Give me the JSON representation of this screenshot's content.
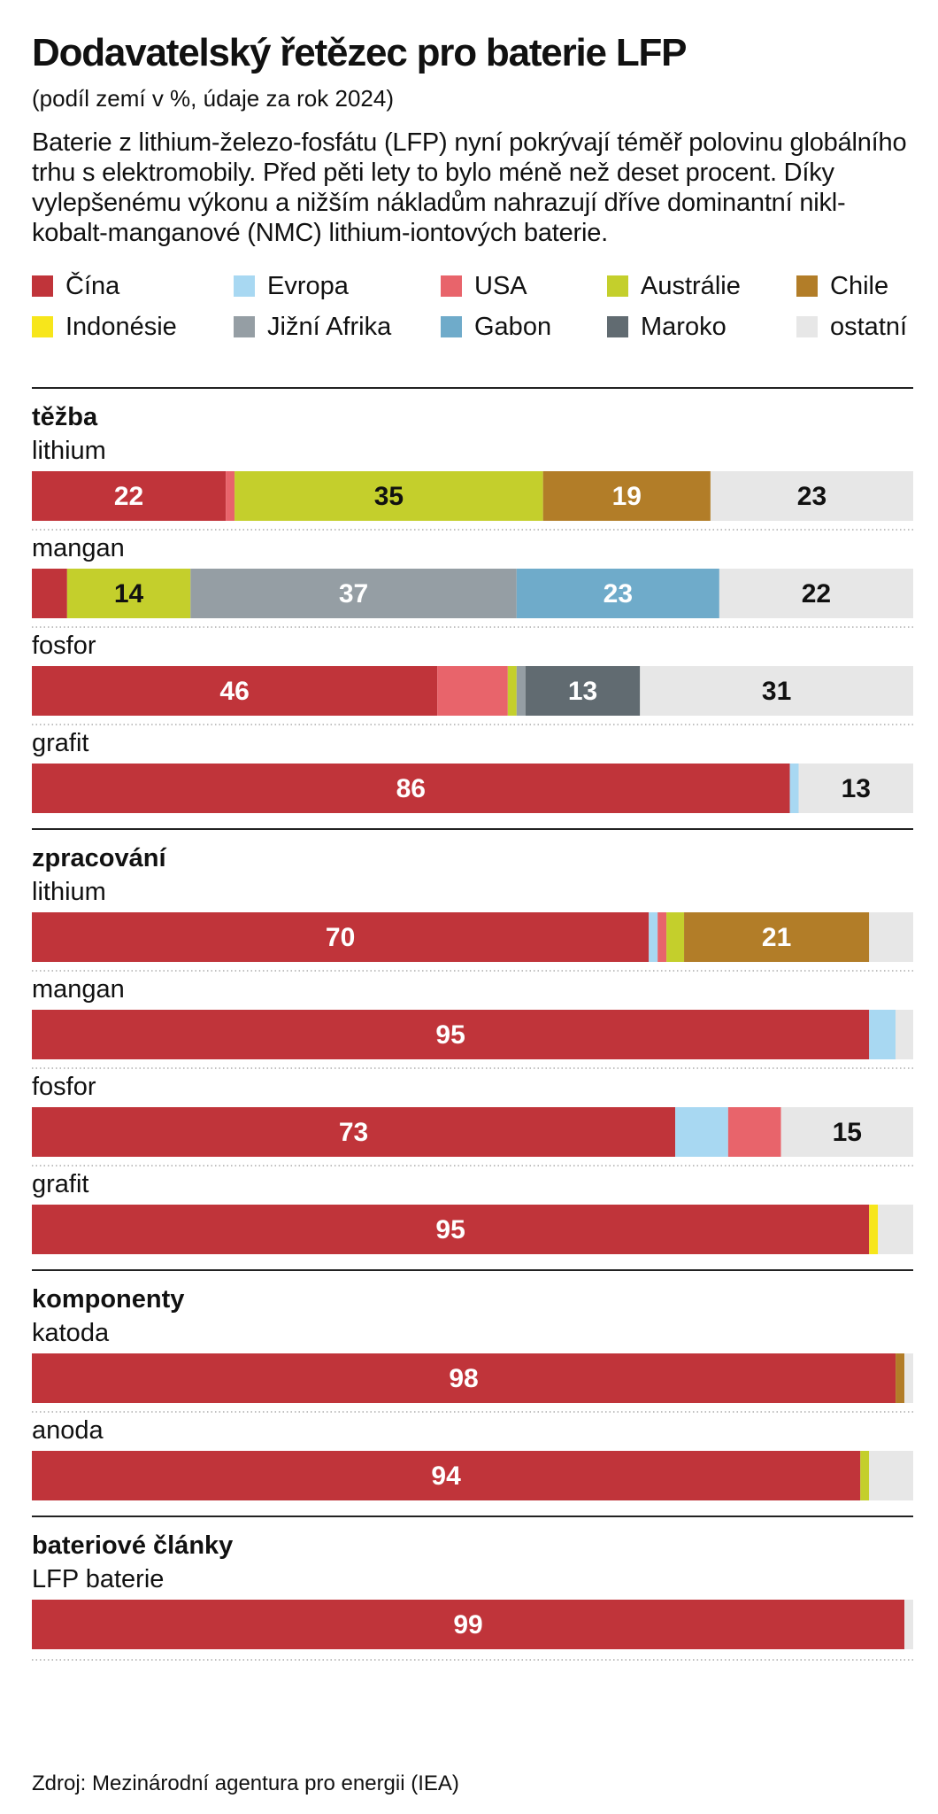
{
  "title": "Dodavatelský řetězec pro baterie LFP",
  "subtitle": "(podíl zemí v %, údaje za rok 2024)",
  "description": "Baterie z lithium-železo-fosfátu (LFP) nyní pokrývají téměř polovinu globálního trhu s elektromobily. Před pěti lety to bylo méně než deset procent. Díky vylepšenému výkonu a nižším nákladům nahrazují dříve dominantní nikl-kobalt-manganové (NMC) lithium-iontových baterie.",
  "source": "Zdroj: Mezinárodní agentura pro energii (IEA)",
  "colors": {
    "cina": "#c0343a",
    "evropa": "#a8d8f2",
    "usa": "#e8646b",
    "australie": "#c4cf2c",
    "chile": "#b27d28",
    "indonesie": "#f7e61b",
    "jizni_afrika": "#959ea4",
    "gabon": "#6fabca",
    "maroko": "#616b71",
    "ostatni": "#e7e7e7"
  },
  "chart_data": {
    "type": "bar",
    "orientation": "horizontal-stacked-100",
    "title": "Dodavatelský řetězec pro baterie LFP",
    "unit": "%",
    "xlim": [
      0,
      100
    ],
    "legend": [
      {
        "key": "cina",
        "label": "Čína"
      },
      {
        "key": "evropa",
        "label": "Evropa"
      },
      {
        "key": "usa",
        "label": "USA"
      },
      {
        "key": "australie",
        "label": "Austrálie"
      },
      {
        "key": "chile",
        "label": "Chile"
      },
      {
        "key": "indonesie",
        "label": "Indonésie"
      },
      {
        "key": "jizni_afrika",
        "label": "Jižní Afrika"
      },
      {
        "key": "gabon",
        "label": "Gabon"
      },
      {
        "key": "maroko",
        "label": "Maroko"
      },
      {
        "key": "ostatni",
        "label": "ostatní"
      }
    ],
    "groups": [
      {
        "name": "těžba",
        "rows": [
          {
            "label": "lithium",
            "segments": [
              {
                "key": "cina",
                "value": 22,
                "label": "22"
              },
              {
                "key": "usa",
                "value": 1
              },
              {
                "key": "australie",
                "value": 35,
                "label": "35"
              },
              {
                "key": "chile",
                "value": 19,
                "label": "19"
              },
              {
                "key": "ostatni",
                "value": 23,
                "label": "23"
              }
            ]
          },
          {
            "label": "mangan",
            "segments": [
              {
                "key": "cina",
                "value": 4
              },
              {
                "key": "australie",
                "value": 14,
                "label": "14"
              },
              {
                "key": "jizni_afrika",
                "value": 37,
                "label": "37"
              },
              {
                "key": "gabon",
                "value": 23,
                "label": "23"
              },
              {
                "key": "ostatni",
                "value": 22,
                "label": "22"
              }
            ]
          },
          {
            "label": "fosfor",
            "segments": [
              {
                "key": "cina",
                "value": 46,
                "label": "46"
              },
              {
                "key": "usa",
                "value": 8
              },
              {
                "key": "australie",
                "value": 1
              },
              {
                "key": "jizni_afrika",
                "value": 1
              },
              {
                "key": "maroko",
                "value": 13,
                "label": "13"
              },
              {
                "key": "ostatni",
                "value": 31,
                "label": "31"
              }
            ]
          },
          {
            "label": "grafit",
            "segments": [
              {
                "key": "cina",
                "value": 86,
                "label": "86"
              },
              {
                "key": "evropa",
                "value": 1
              },
              {
                "key": "ostatni",
                "value": 13,
                "label": "13"
              }
            ]
          }
        ]
      },
      {
        "name": "zpracování",
        "rows": [
          {
            "label": "lithium",
            "segments": [
              {
                "key": "cina",
                "value": 70,
                "label": "70"
              },
              {
                "key": "evropa",
                "value": 1
              },
              {
                "key": "usa",
                "value": 1
              },
              {
                "key": "australie",
                "value": 2
              },
              {
                "key": "chile",
                "value": 21,
                "label": "21"
              },
              {
                "key": "ostatni",
                "value": 5
              }
            ]
          },
          {
            "label": "mangan",
            "segments": [
              {
                "key": "cina",
                "value": 95,
                "label": "95"
              },
              {
                "key": "evropa",
                "value": 3
              },
              {
                "key": "ostatni",
                "value": 2
              }
            ]
          },
          {
            "label": "fosfor",
            "segments": [
              {
                "key": "cina",
                "value": 73,
                "label": "73"
              },
              {
                "key": "evropa",
                "value": 6
              },
              {
                "key": "usa",
                "value": 6
              },
              {
                "key": "ostatni",
                "value": 15,
                "label": "15"
              }
            ]
          },
          {
            "label": "grafit",
            "segments": [
              {
                "key": "cina",
                "value": 95,
                "label": "95"
              },
              {
                "key": "indonesie",
                "value": 1
              },
              {
                "key": "ostatni",
                "value": 4
              }
            ]
          }
        ]
      },
      {
        "name": "komponenty",
        "rows": [
          {
            "label": "katoda",
            "segments": [
              {
                "key": "cina",
                "value": 98,
                "label": "98"
              },
              {
                "key": "chile",
                "value": 1
              },
              {
                "key": "ostatni",
                "value": 1
              }
            ]
          },
          {
            "label": "anoda",
            "segments": [
              {
                "key": "cina",
                "value": 94,
                "label": "94"
              },
              {
                "key": "australie",
                "value": 1
              },
              {
                "key": "ostatni",
                "value": 5
              }
            ]
          }
        ]
      },
      {
        "name": "bateriové články",
        "rows": [
          {
            "label": "LFP baterie",
            "segments": [
              {
                "key": "cina",
                "value": 99,
                "label": "99"
              },
              {
                "key": "ostatni",
                "value": 1
              }
            ]
          }
        ]
      }
    ]
  }
}
